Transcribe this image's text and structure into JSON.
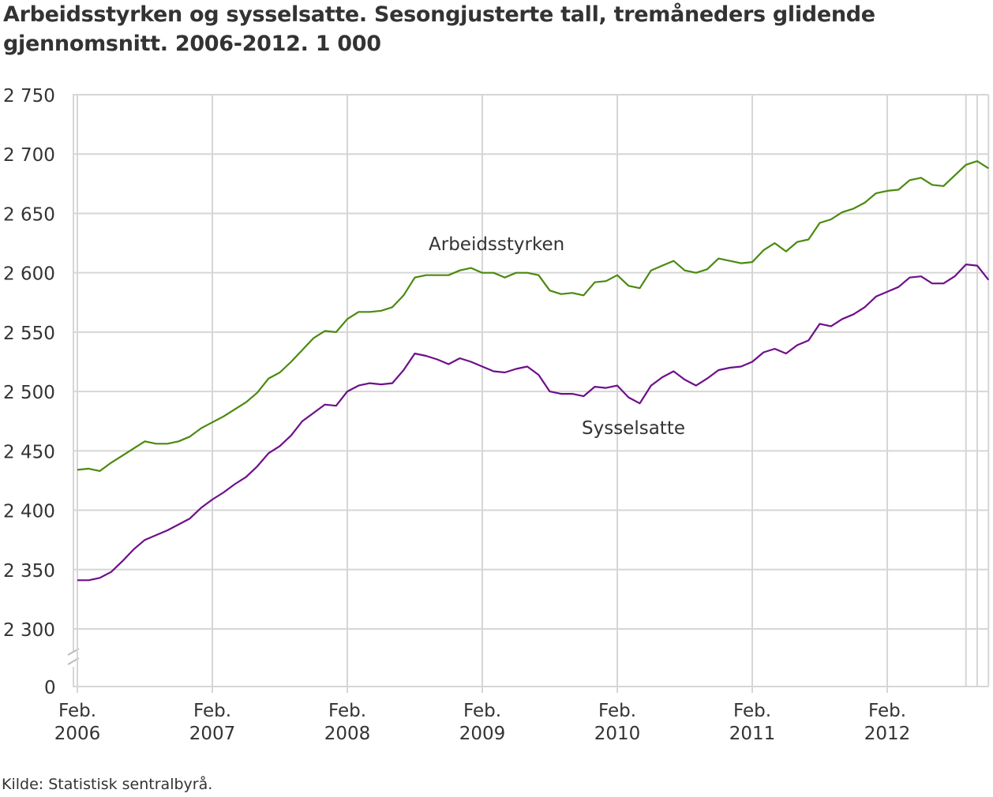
{
  "title": "Arbeidsstyrken og sysselsatte. Sesongjusterte tall, tremåneders glidende gjennomsnitt. 2006-2012. 1 000",
  "source": "Kilde: Statistisk sentralbyrå.",
  "chart_data": {
    "type": "line",
    "title": "Arbeidsstyrken og sysselsatte. Sesongjusterte tall, tremåneders glidende gjennomsnitt. 2006-2012. 1 000",
    "xlabel": "",
    "ylabel": "",
    "x_start": "2006-02",
    "x_end": "2012-11",
    "x_ticks": [
      {
        "line1": "Feb.",
        "line2": "2006"
      },
      {
        "line1": "Feb.",
        "line2": "2007"
      },
      {
        "line1": "Feb.",
        "line2": "2008"
      },
      {
        "line1": "Feb.",
        "line2": "2009"
      },
      {
        "line1": "Feb.",
        "line2": "2010"
      },
      {
        "line1": "Feb.",
        "line2": "2011"
      },
      {
        "line1": "Feb.",
        "line2": "2012"
      }
    ],
    "y_ticks": [
      "2 300",
      "2 350",
      "2 400",
      "2 450",
      "2 500",
      "2 550",
      "2 600",
      "2 650",
      "2 700",
      "2 750"
    ],
    "y_zero_label": "0",
    "ylim": [
      2300,
      2750
    ],
    "axis_break": true,
    "grid": true,
    "series": [
      {
        "name": "Arbeidsstyrken",
        "color": "#4a8a0e",
        "values": [
          2434,
          2435,
          2433,
          2440,
          2446,
          2452,
          2458,
          2456,
          2456,
          2458,
          2462,
          2469,
          2474,
          2479,
          2485,
          2491,
          2499,
          2511,
          2516,
          2525,
          2535,
          2545,
          2551,
          2550,
          2561,
          2567,
          2567,
          2568,
          2571,
          2581,
          2596,
          2598,
          2598,
          2598,
          2602,
          2604,
          2600,
          2600,
          2596,
          2600,
          2600,
          2598,
          2585,
          2582,
          2583,
          2581,
          2592,
          2593,
          2598,
          2589,
          2587,
          2602,
          2606,
          2610,
          2602,
          2600,
          2603,
          2612,
          2610,
          2608,
          2609,
          2619,
          2625,
          2618,
          2626,
          2628,
          2642,
          2645,
          2651,
          2654,
          2659,
          2667,
          2669,
          2670,
          2678,
          2680,
          2674,
          2673,
          2682,
          2691,
          2694,
          2688
        ]
      },
      {
        "name": "Sysselsatte",
        "color": "#6e0f8a",
        "values": [
          2341,
          2341,
          2343,
          2348,
          2357,
          2367,
          2375,
          2379,
          2383,
          2388,
          2393,
          2402,
          2409,
          2415,
          2422,
          2428,
          2437,
          2448,
          2454,
          2463,
          2475,
          2482,
          2489,
          2488,
          2500,
          2505,
          2507,
          2506,
          2507,
          2518,
          2532,
          2530,
          2527,
          2523,
          2528,
          2525,
          2521,
          2517,
          2516,
          2519,
          2521,
          2514,
          2500,
          2498,
          2498,
          2496,
          2504,
          2503,
          2505,
          2495,
          2490,
          2505,
          2512,
          2517,
          2510,
          2505,
          2511,
          2518,
          2520,
          2521,
          2525,
          2533,
          2536,
          2532,
          2539,
          2543,
          2557,
          2555,
          2561,
          2565,
          2571,
          2580,
          2584,
          2588,
          2596,
          2597,
          2591,
          2591,
          2597,
          2607,
          2606,
          2594
        ]
      }
    ]
  }
}
